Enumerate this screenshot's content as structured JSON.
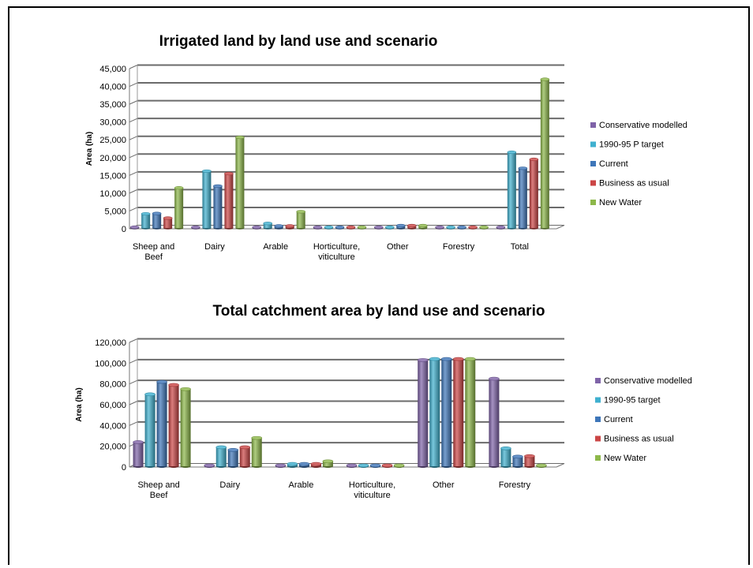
{
  "chart_data": [
    {
      "type": "bar",
      "title": "Irrigated land by land use and scenario",
      "xlabel": "",
      "ylabel": "Area (ha)",
      "ylim": [
        0,
        45000
      ],
      "yticks": [
        "0",
        "5,000",
        "10,000",
        "15,000",
        "20,000",
        "25,000",
        "30,000",
        "35,000",
        "40,000",
        "45,000"
      ],
      "categories": [
        "Sheep and|Beef",
        "Dairy",
        "Arable",
        "Horticulture,|viticulture",
        "Other",
        "Forestry",
        "Total"
      ],
      "legend_position": "right",
      "grid": true,
      "series": [
        {
          "name": "Conservative modelled",
          "color": "#7f63a8",
          "values": [
            0,
            0,
            0,
            0,
            0,
            0,
            0
          ]
        },
        {
          "name": "1990-95 P target",
          "color": "#3fb0cf",
          "values": [
            4200,
            16200,
            1500,
            100,
            100,
            100,
            21500
          ]
        },
        {
          "name": "Current",
          "color": "#3e76b9",
          "values": [
            4300,
            12000,
            800,
            100,
            900,
            100,
            17000
          ]
        },
        {
          "name": "Business as usual",
          "color": "#cb4545",
          "values": [
            3000,
            15500,
            800,
            100,
            900,
            100,
            19500
          ]
        },
        {
          "name": "New Water",
          "color": "#8db84a",
          "values": [
            11500,
            25700,
            4800,
            300,
            900,
            100,
            42000
          ]
        }
      ]
    },
    {
      "type": "bar",
      "title": "Total catchment area by land use and scenario",
      "xlabel": "",
      "ylabel": "Area (ha)",
      "ylim": [
        0,
        120000
      ],
      "yticks": [
        "0",
        "20,000",
        "40,000",
        "60,000",
        "80,000",
        "100,000",
        "120,000"
      ],
      "categories": [
        "Sheep and|Beef",
        "Dairy",
        "Arable",
        "Horticulture,|viticulture",
        "Other",
        "Forestry"
      ],
      "legend_position": "right",
      "grid": true,
      "series": [
        {
          "name": "Conservative modelled",
          "color": "#7f63a8",
          "values": [
            24000,
            1000,
            1000,
            800,
            103000,
            85000
          ]
        },
        {
          "name": "1990-95 target",
          "color": "#3fb0cf",
          "values": [
            70000,
            19000,
            3000,
            800,
            104000,
            18000
          ]
        },
        {
          "name": "Current",
          "color": "#3e76b9",
          "values": [
            82000,
            16500,
            3000,
            800,
            104000,
            10000
          ]
        },
        {
          "name": "Business as usual",
          "color": "#cb4545",
          "values": [
            79000,
            19000,
            3000,
            800,
            104000,
            10500
          ]
        },
        {
          "name": "New Water",
          "color": "#8db84a",
          "values": [
            75000,
            28000,
            5500,
            800,
            104000,
            1500
          ]
        }
      ]
    }
  ]
}
